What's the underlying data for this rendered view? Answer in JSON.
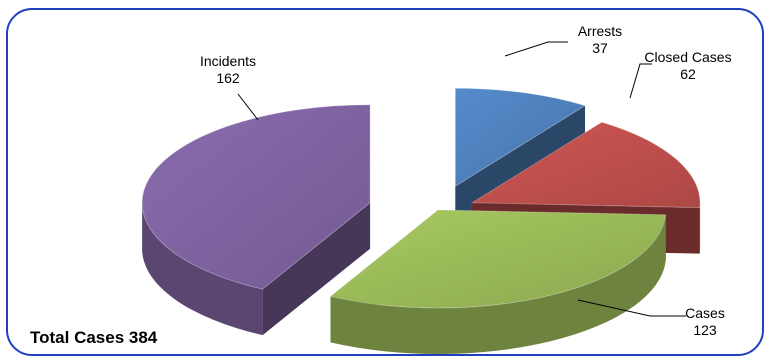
{
  "chart_data": {
    "type": "pie",
    "style": "3d-exploded",
    "title": "",
    "categories": [
      "Arrests",
      "Closed Cases",
      "Cases",
      "Incidents"
    ],
    "values": [
      37,
      62,
      123,
      162
    ],
    "colors": [
      "#4f81bd",
      "#c0504d",
      "#9bbb59",
      "#8064a2"
    ],
    "data_labels": [
      {
        "name": "Arrests",
        "value": "37"
      },
      {
        "name": "Closed Cases",
        "value": "62"
      },
      {
        "name": "Cases",
        "value": "123"
      },
      {
        "name": "Incidents",
        "value": "162"
      }
    ],
    "legend": "none"
  },
  "total_label": "Total Cases 384"
}
